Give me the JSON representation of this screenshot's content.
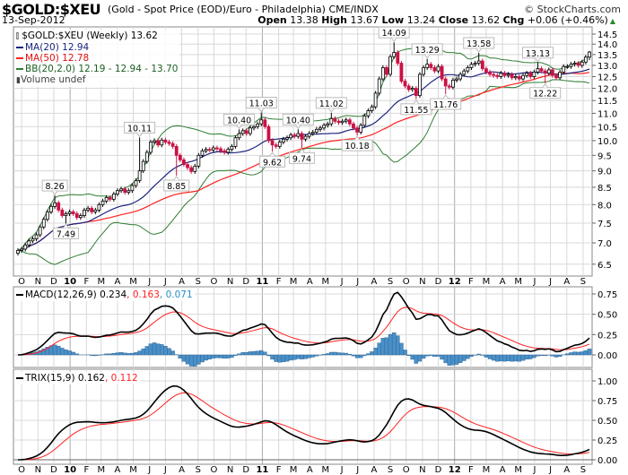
{
  "header": {
    "symbol": "$GOLD:$XEU",
    "description": "(Gold - Spot Price (EOD)/Euro - Philadelphia)  CME/INDX",
    "copyright": "© StockCharts.com",
    "date": "13-Sep-2012",
    "open_label": "Open",
    "open": "13.38",
    "high_label": "High",
    "high": "13.67",
    "low_label": "Low",
    "low": "13.24",
    "close_label": "Close",
    "close": "13.62",
    "chg_label": "Chg",
    "chg": "+0.06 (+0.46%)",
    "chg_direction": "up"
  },
  "legend": {
    "price": "$GOLD:$XEU (Weekly) 13.62",
    "ma20": "MA(20) 12.94",
    "ma50": "MA(50) 12.78",
    "bb": "BB(20,2.0) 12.19 - 12.94 - 13.70",
    "volume": "Volume undef",
    "macd_name": "MACD(12,26,9) 0.234",
    "macd_signal": ", 0.163",
    "macd_hist": ", 0.071",
    "trix_name": "TRIX(15,9) 0.162",
    "trix_signal": ", 0.112"
  },
  "colors": {
    "up_candle": "#ffffff",
    "down_candle": "#cc1144",
    "ma20": "#1a237e",
    "ma50": "#ff2020",
    "bb": "#2e7d32",
    "macd": "#000000",
    "signal": "#ff2020",
    "histogram": "#4a90c8",
    "grid": "#d8d8d8"
  },
  "chart_data": [
    {
      "type": "candlestick",
      "panel": "price",
      "frequency": "weekly",
      "scale": "log",
      "ylim": [
        6.5,
        14.5
      ],
      "yticks": [
        "6.5",
        "7.0",
        "7.5",
        "8.0",
        "8.5",
        "9.0",
        "9.5",
        "10.0",
        "10.5",
        "11.0",
        "11.5",
        "12.0",
        "12.5",
        "13.0",
        "13.5",
        "14.0",
        "14.5"
      ],
      "x_tick_labels": [
        "O",
        "N",
        "D",
        "10",
        "F",
        "M",
        "A",
        "M",
        "J",
        "J",
        "A",
        "S",
        "O",
        "N",
        "D",
        "11",
        "F",
        "M",
        "A",
        "M",
        "J",
        "J",
        "A",
        "S",
        "O",
        "N",
        "D",
        "12",
        "F",
        "M",
        "A",
        "M",
        "J",
        "J",
        "A",
        "S"
      ],
      "grid": true,
      "last_date": "13-Sep-2012",
      "closes": [
        6.82,
        6.85,
        6.95,
        7.05,
        7.1,
        7.2,
        7.4,
        7.6,
        7.8,
        7.95,
        8.05,
        7.85,
        7.7,
        7.75,
        7.8,
        7.75,
        7.65,
        7.7,
        7.85,
        7.9,
        7.8,
        7.85,
        8.0,
        8.1,
        8.2,
        8.15,
        8.3,
        8.4,
        8.45,
        8.35,
        8.4,
        8.55,
        8.7,
        9.0,
        9.3,
        9.6,
        9.95,
        10.0,
        9.85,
        10.02,
        9.95,
        9.9,
        9.8,
        9.5,
        9.35,
        9.2,
        9.1,
        8.98,
        9.15,
        9.5,
        9.65,
        9.7,
        9.68,
        9.75,
        9.72,
        9.65,
        9.6,
        9.7,
        9.8,
        10.1,
        10.25,
        10.35,
        10.25,
        10.45,
        10.5,
        10.6,
        10.75,
        10.5,
        10.0,
        9.85,
        9.8,
        9.95,
        10.05,
        10.1,
        10.2,
        10.15,
        10.25,
        10.05,
        10.15,
        10.25,
        10.3,
        10.4,
        10.45,
        10.55,
        10.6,
        10.8,
        10.7,
        10.65,
        10.7,
        10.75,
        10.6,
        10.45,
        10.3,
        10.55,
        10.9,
        11.1,
        11.25,
        11.8,
        12.4,
        12.9,
        12.6,
        13.4,
        13.6,
        13.1,
        12.3,
        12.1,
        11.95,
        12.0,
        11.7,
        12.6,
        12.9,
        13.05,
        12.9,
        12.75,
        12.95,
        12.4,
        12.1,
        12.05,
        12.35,
        12.4,
        12.6,
        12.75,
        12.9,
        13.05,
        13.1,
        13.2,
        12.85,
        12.7,
        12.6,
        12.55,
        12.5,
        12.65,
        12.55,
        12.6,
        12.45,
        12.5,
        12.4,
        12.55,
        12.65,
        12.5,
        12.7,
        12.85,
        12.75,
        12.65,
        12.8,
        12.55,
        12.45,
        12.7,
        12.95,
        12.95,
        13.05,
        13.1,
        13.0,
        13.15,
        13.38,
        13.62
      ],
      "last_candle": {
        "open": 13.38,
        "high": 13.67,
        "low": 13.24,
        "close": 13.62
      },
      "annotations": [
        {
          "index": 10,
          "value": "8.26",
          "kind": "high"
        },
        {
          "index": 13,
          "value": "7.49",
          "kind": "low"
        },
        {
          "index": 33,
          "value": "10.11",
          "kind": "high"
        },
        {
          "index": 43,
          "value": "8.85",
          "kind": "low"
        },
        {
          "index": 60,
          "value": "10.40",
          "kind": "high"
        },
        {
          "index": 66,
          "value": "11.03",
          "kind": "high"
        },
        {
          "index": 69,
          "value": "9.62",
          "kind": "low"
        },
        {
          "index": 76,
          "value": "10.40",
          "kind": "high"
        },
        {
          "index": 77,
          "value": "9.74",
          "kind": "low"
        },
        {
          "index": 85,
          "value": "11.02",
          "kind": "high"
        },
        {
          "index": 92,
          "value": "10.18",
          "kind": "low"
        },
        {
          "index": 102,
          "value": "14.09",
          "kind": "high"
        },
        {
          "index": 108,
          "value": "11.55",
          "kind": "low"
        },
        {
          "index": 111,
          "value": "13.29",
          "kind": "high"
        },
        {
          "index": 116,
          "value": "11.76",
          "kind": "low"
        },
        {
          "index": 125,
          "value": "13.58",
          "kind": "high"
        },
        {
          "index": 141,
          "value": "13.13",
          "kind": "high"
        },
        {
          "index": 143,
          "value": "12.22",
          "kind": "low"
        }
      ],
      "overlays": [
        "MA(20)",
        "MA(50)",
        "BB(20,2.0)"
      ]
    },
    {
      "type": "line+bar",
      "panel": "MACD(12,26,9)",
      "ylim": [
        -0.15,
        0.84
      ],
      "yticks": [
        "0.00",
        "0.25",
        "0.50",
        "0.75"
      ],
      "latest": {
        "macd": 0.234,
        "signal": 0.163,
        "histogram": 0.071
      }
    },
    {
      "type": "line",
      "panel": "TRIX(15,9)",
      "ylim": [
        -0.06,
        1.1
      ],
      "yticks": [
        "0.00",
        "0.25",
        "0.50",
        "0.75",
        "1.00"
      ],
      "latest": {
        "trix": 0.162,
        "signal": 0.112
      }
    }
  ]
}
